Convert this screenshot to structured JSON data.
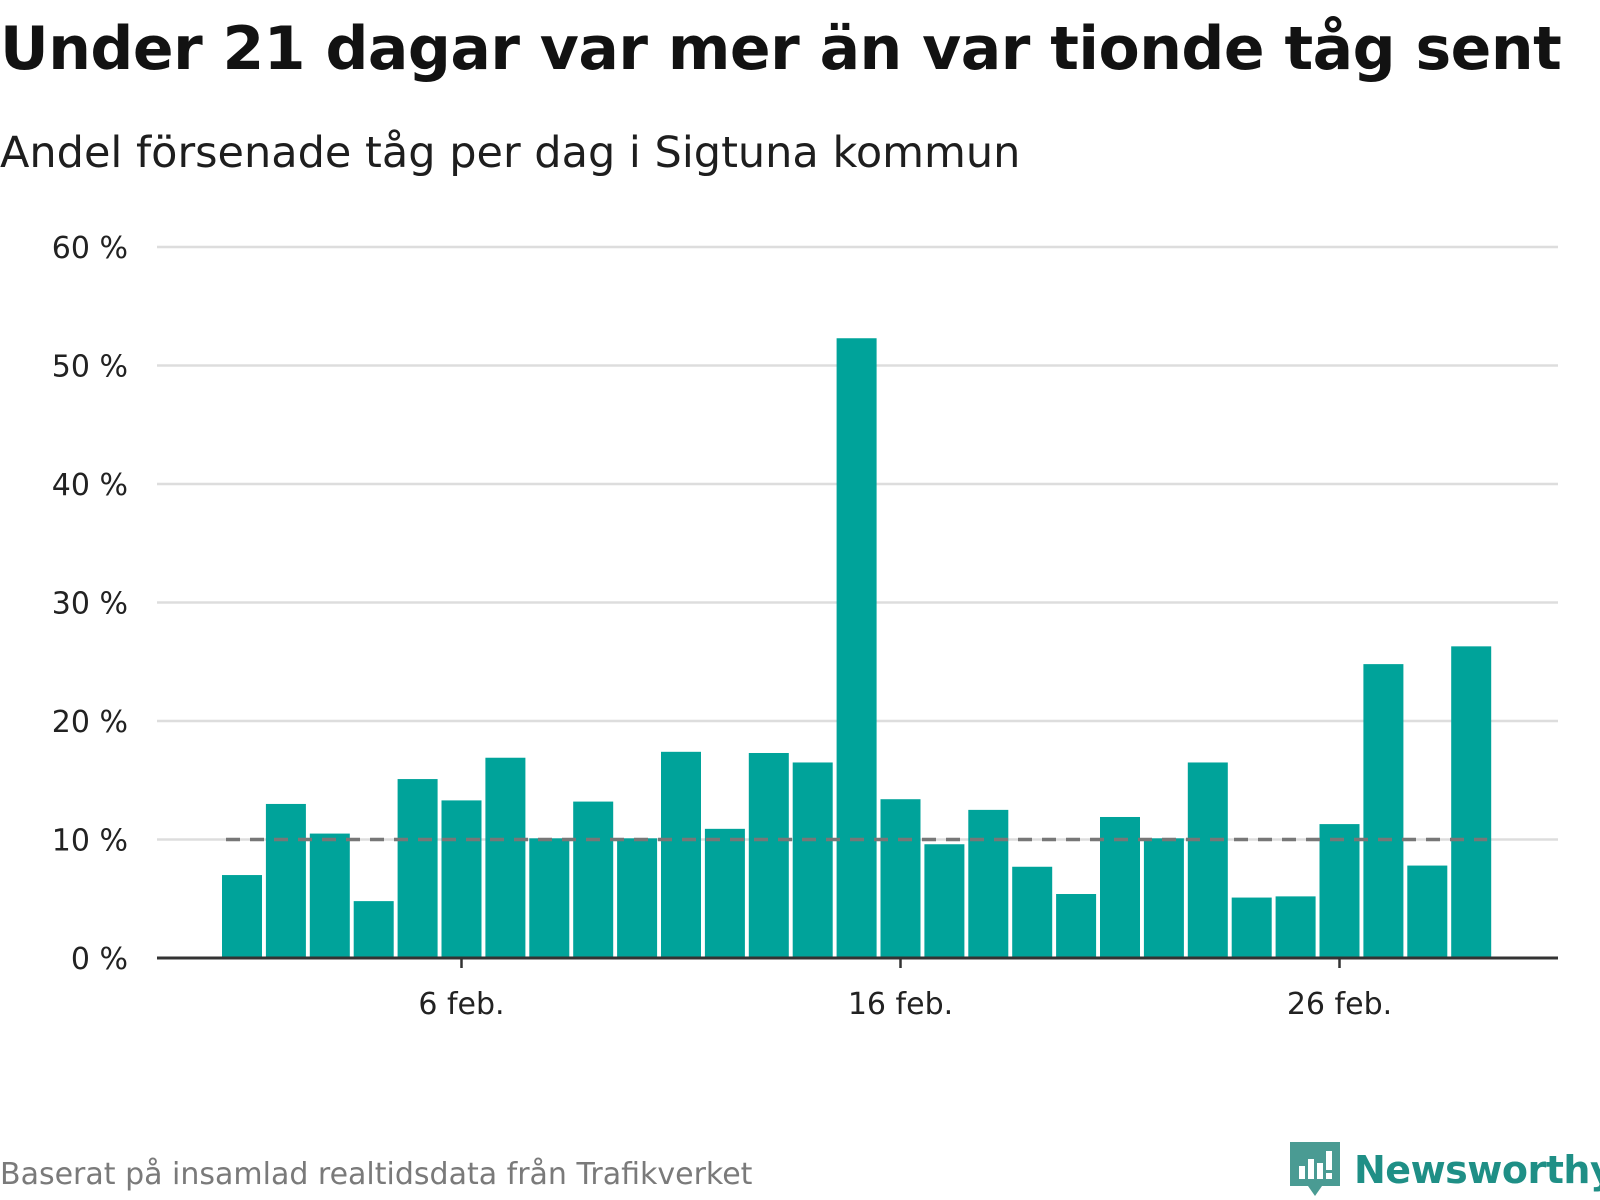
{
  "title": "Under 21 dagar var mer än var tionde tåg sent",
  "subtitle": "Andel försenade tåg per dag i Sigtuna kommun",
  "source": "Baserat på insamlad realtidsdata från Trafikverket",
  "brand": {
    "name": "Newsworthy",
    "icon": "newsworthy-logo-icon"
  },
  "colors": {
    "bar": "#00a39a",
    "grid": "#dddddd",
    "axis": "#333333",
    "reference": "#777777",
    "brand": "#1f8f86"
  },
  "chart_data": {
    "type": "bar",
    "title": "Under 21 dagar var mer än var tionde tåg sent",
    "subtitle": "Andel försenade tåg per dag i Sigtuna kommun",
    "xlabel": "",
    "ylabel": "",
    "ylim": [
      0,
      60
    ],
    "yticks": [
      0,
      10,
      20,
      30,
      40,
      50,
      60
    ],
    "ytick_labels": [
      "0 %",
      "10 %",
      "20 %",
      "30 %",
      "40 %",
      "50 %",
      "60 %"
    ],
    "xticks": [
      {
        "category": "6 feb.",
        "label": "6 feb."
      },
      {
        "category": "16 feb.",
        "label": "16 feb."
      },
      {
        "category": "26 feb.",
        "label": "26 feb."
      }
    ],
    "categories": [
      "1 feb.",
      "2 feb.",
      "3 feb.",
      "4 feb.",
      "5 feb.",
      "6 feb.",
      "7 feb.",
      "8 feb.",
      "9 feb.",
      "10 feb.",
      "11 feb.",
      "12 feb.",
      "13 feb.",
      "14 feb.",
      "15 feb.",
      "16 feb.",
      "17 feb.",
      "18 feb.",
      "19 feb.",
      "20 feb.",
      "21 feb.",
      "22 feb.",
      "23 feb.",
      "24 feb.",
      "25 feb.",
      "26 feb.",
      "27 feb.",
      "28 feb.",
      "29 feb."
    ],
    "values": [
      7.0,
      13.0,
      10.5,
      4.8,
      15.1,
      13.3,
      16.9,
      10.1,
      13.2,
      10.1,
      17.4,
      10.9,
      17.3,
      16.5,
      52.3,
      13.4,
      9.6,
      12.5,
      7.7,
      5.4,
      11.9,
      10.1,
      16.5,
      5.1,
      5.2,
      11.3,
      24.8,
      7.8,
      26.3
    ],
    "reference_line": {
      "value": 10,
      "style": "dashed"
    },
    "grid": true,
    "legend": "none"
  }
}
